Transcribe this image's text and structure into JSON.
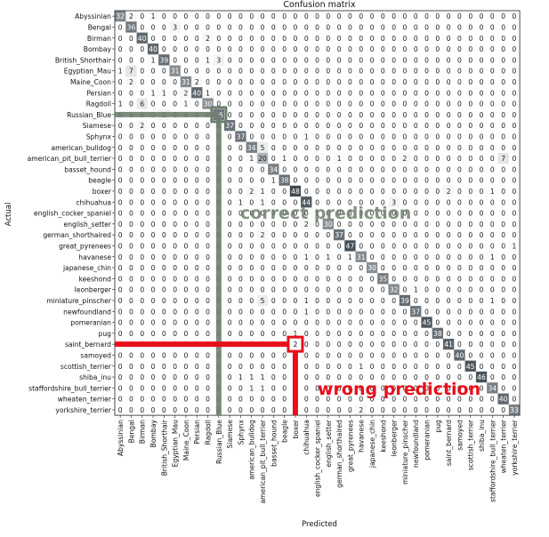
{
  "chart_data": {
    "type": "heatmap",
    "title": "Confusion matrix",
    "xlabel": "Predicted",
    "ylabel": "Actual",
    "labels": [
      "Abyssinian",
      "Bengal",
      "Birman",
      "Bombay",
      "British_Shorthair",
      "Egyptian_Mau",
      "Maine_Coon",
      "Persian",
      "Ragdoll",
      "Russian_Blue",
      "Siamese",
      "Sphynx",
      "american_bulldog",
      "american_pit_bull_terrier",
      "basset_hound",
      "beagle",
      "boxer",
      "chihuahua",
      "english_cocker_spaniel",
      "english_setter",
      "german_shorthaired",
      "great_pyrenees",
      "havanese",
      "japanese_chin",
      "keeshond",
      "leonberger",
      "miniature_pinscher",
      "newfoundland",
      "pomeranian",
      "pug",
      "saint_bernard",
      "samoyed",
      "scottish_terrier",
      "shiba_inu",
      "staffordshire_bull_terrier",
      "wheaten_terrier",
      "yorkshire_terrier"
    ],
    "matrix": [
      [
        32,
        2,
        0,
        1,
        0,
        0,
        0,
        0,
        0,
        0,
        0,
        0,
        0,
        0,
        0,
        0,
        0,
        0,
        0,
        0,
        0,
        0,
        0,
        0,
        0,
        0,
        0,
        0,
        0,
        0,
        0,
        0,
        0,
        0,
        0,
        0,
        0
      ],
      [
        0,
        36,
        0,
        0,
        0,
        3,
        0,
        0,
        0,
        0,
        0,
        0,
        0,
        0,
        0,
        0,
        0,
        0,
        0,
        0,
        0,
        0,
        0,
        0,
        0,
        0,
        0,
        0,
        0,
        0,
        0,
        0,
        0,
        0,
        0,
        0,
        0
      ],
      [
        0,
        0,
        40,
        0,
        0,
        0,
        0,
        0,
        2,
        0,
        0,
        0,
        0,
        0,
        0,
        0,
        0,
        0,
        0,
        0,
        0,
        0,
        0,
        0,
        0,
        0,
        0,
        0,
        0,
        0,
        0,
        0,
        0,
        0,
        0,
        0,
        0
      ],
      [
        0,
        0,
        0,
        40,
        0,
        0,
        0,
        0,
        0,
        0,
        0,
        0,
        0,
        0,
        0,
        0,
        0,
        0,
        0,
        0,
        0,
        0,
        0,
        0,
        0,
        0,
        0,
        0,
        0,
        0,
        0,
        0,
        0,
        0,
        0,
        0,
        0
      ],
      [
        0,
        0,
        0,
        1,
        39,
        0,
        0,
        0,
        1,
        3,
        0,
        0,
        0,
        0,
        0,
        0,
        0,
        0,
        0,
        0,
        0,
        0,
        0,
        0,
        0,
        0,
        0,
        0,
        0,
        0,
        0,
        0,
        0,
        0,
        0,
        0,
        0
      ],
      [
        1,
        7,
        0,
        0,
        0,
        31,
        0,
        0,
        0,
        0,
        0,
        0,
        0,
        0,
        0,
        0,
        0,
        0,
        0,
        0,
        0,
        0,
        0,
        0,
        0,
        0,
        0,
        0,
        0,
        0,
        0,
        0,
        0,
        0,
        0,
        0,
        0
      ],
      [
        0,
        2,
        0,
        0,
        0,
        0,
        31,
        2,
        0,
        0,
        0,
        0,
        0,
        0,
        0,
        0,
        0,
        0,
        0,
        0,
        0,
        0,
        0,
        0,
        0,
        0,
        0,
        0,
        0,
        0,
        0,
        0,
        0,
        0,
        0,
        0,
        0
      ],
      [
        0,
        0,
        0,
        1,
        1,
        0,
        2,
        40,
        1,
        0,
        0,
        0,
        0,
        0,
        0,
        0,
        0,
        0,
        0,
        0,
        0,
        0,
        0,
        0,
        0,
        0,
        0,
        0,
        0,
        0,
        0,
        0,
        0,
        0,
        0,
        0,
        0
      ],
      [
        1,
        0,
        6,
        0,
        0,
        0,
        1,
        0,
        30,
        0,
        0,
        0,
        0,
        0,
        0,
        0,
        0,
        0,
        0,
        0,
        0,
        0,
        0,
        0,
        0,
        0,
        0,
        0,
        0,
        0,
        0,
        0,
        0,
        0,
        0,
        0,
        0
      ],
      [
        0,
        0,
        0,
        0,
        3,
        0,
        0,
        0,
        0,
        36,
        0,
        0,
        0,
        0,
        0,
        0,
        0,
        0,
        0,
        0,
        0,
        0,
        0,
        0,
        0,
        0,
        0,
        0,
        0,
        0,
        0,
        0,
        0,
        0,
        0,
        0,
        0
      ],
      [
        0,
        0,
        2,
        0,
        0,
        0,
        0,
        0,
        0,
        0,
        37,
        0,
        0,
        0,
        0,
        0,
        0,
        0,
        0,
        0,
        0,
        0,
        0,
        0,
        0,
        0,
        0,
        0,
        0,
        0,
        0,
        0,
        0,
        0,
        0,
        0,
        0
      ],
      [
        0,
        0,
        0,
        0,
        0,
        0,
        0,
        0,
        0,
        0,
        0,
        37,
        0,
        0,
        0,
        0,
        0,
        1,
        0,
        0,
        0,
        0,
        0,
        0,
        0,
        0,
        0,
        0,
        0,
        0,
        0,
        0,
        0,
        0,
        0,
        0,
        0
      ],
      [
        0,
        0,
        0,
        0,
        0,
        0,
        0,
        0,
        0,
        0,
        0,
        0,
        34,
        5,
        0,
        0,
        0,
        0,
        0,
        0,
        0,
        0,
        0,
        0,
        0,
        0,
        0,
        0,
        0,
        0,
        0,
        0,
        0,
        0,
        0,
        0,
        0
      ],
      [
        0,
        0,
        0,
        0,
        0,
        0,
        0,
        0,
        0,
        0,
        0,
        0,
        1,
        20,
        0,
        1,
        0,
        0,
        0,
        0,
        1,
        0,
        0,
        0,
        0,
        0,
        2,
        0,
        0,
        0,
        0,
        0,
        0,
        0,
        0,
        7,
        0
      ],
      [
        0,
        0,
        0,
        0,
        0,
        0,
        0,
        0,
        0,
        0,
        0,
        0,
        0,
        0,
        34,
        0,
        0,
        0,
        0,
        0,
        0,
        0,
        0,
        0,
        0,
        0,
        0,
        0,
        0,
        0,
        0,
        0,
        0,
        0,
        0,
        0,
        0
      ],
      [
        0,
        0,
        0,
        0,
        0,
        0,
        0,
        0,
        0,
        0,
        0,
        0,
        0,
        0,
        1,
        38,
        0,
        0,
        0,
        0,
        0,
        0,
        0,
        0,
        0,
        0,
        0,
        0,
        0,
        0,
        0,
        0,
        0,
        0,
        0,
        0,
        0
      ],
      [
        0,
        0,
        0,
        0,
        0,
        0,
        0,
        0,
        0,
        0,
        0,
        0,
        2,
        1,
        0,
        0,
        48,
        0,
        0,
        0,
        0,
        0,
        0,
        0,
        0,
        0,
        0,
        0,
        0,
        0,
        2,
        0,
        0,
        0,
        1,
        0,
        0
      ],
      [
        0,
        0,
        0,
        0,
        0,
        0,
        0,
        0,
        0,
        0,
        0,
        1,
        0,
        1,
        0,
        0,
        0,
        44,
        0,
        0,
        0,
        0,
        0,
        0,
        0,
        3,
        0,
        0,
        0,
        0,
        0,
        0,
        0,
        0,
        0,
        0,
        0
      ],
      [
        0,
        0,
        0,
        0,
        0,
        0,
        0,
        0,
        0,
        0,
        0,
        0,
        0,
        0,
        0,
        0,
        0,
        0,
        1,
        0,
        0,
        0,
        0,
        0,
        0,
        0,
        0,
        0,
        0,
        0,
        0,
        0,
        0,
        0,
        0,
        0,
        0
      ],
      [
        0,
        0,
        0,
        0,
        0,
        0,
        0,
        0,
        0,
        0,
        0,
        0,
        0,
        0,
        0,
        0,
        0,
        2,
        0,
        30,
        0,
        0,
        0,
        0,
        0,
        0,
        0,
        0,
        0,
        0,
        0,
        0,
        0,
        0,
        0,
        0,
        0
      ],
      [
        0,
        0,
        0,
        0,
        0,
        0,
        0,
        0,
        0,
        0,
        0,
        0,
        0,
        2,
        0,
        0,
        0,
        0,
        0,
        0,
        37,
        0,
        0,
        0,
        0,
        0,
        0,
        0,
        0,
        0,
        0,
        0,
        0,
        0,
        0,
        0,
        0
      ],
      [
        0,
        0,
        0,
        0,
        0,
        0,
        0,
        0,
        0,
        0,
        0,
        0,
        0,
        0,
        0,
        0,
        0,
        0,
        0,
        0,
        0,
        47,
        0,
        0,
        0,
        0,
        0,
        0,
        0,
        0,
        0,
        0,
        0,
        0,
        0,
        0,
        1
      ],
      [
        0,
        0,
        0,
        0,
        0,
        0,
        0,
        0,
        0,
        0,
        0,
        0,
        0,
        0,
        0,
        0,
        0,
        1,
        0,
        1,
        0,
        1,
        31,
        0,
        0,
        0,
        0,
        0,
        0,
        0,
        0,
        0,
        0,
        0,
        1,
        0,
        0
      ],
      [
        0,
        0,
        0,
        0,
        0,
        0,
        0,
        0,
        0,
        0,
        0,
        0,
        0,
        0,
        0,
        0,
        0,
        0,
        0,
        0,
        0,
        0,
        0,
        30,
        0,
        0,
        0,
        0,
        0,
        0,
        0,
        0,
        0,
        0,
        0,
        0,
        0
      ],
      [
        0,
        0,
        0,
        0,
        0,
        0,
        0,
        0,
        0,
        0,
        0,
        0,
        0,
        0,
        0,
        0,
        0,
        0,
        0,
        0,
        0,
        0,
        0,
        0,
        35,
        0,
        0,
        0,
        0,
        0,
        0,
        0,
        0,
        0,
        0,
        0,
        0
      ],
      [
        0,
        0,
        0,
        0,
        0,
        0,
        0,
        0,
        0,
        0,
        0,
        0,
        0,
        0,
        0,
        0,
        0,
        0,
        0,
        0,
        0,
        0,
        0,
        0,
        0,
        32,
        0,
        1,
        0,
        0,
        0,
        0,
        0,
        0,
        0,
        0,
        0
      ],
      [
        0,
        0,
        0,
        0,
        0,
        0,
        0,
        0,
        0,
        0,
        0,
        0,
        0,
        5,
        0,
        0,
        0,
        1,
        0,
        0,
        0,
        0,
        0,
        0,
        0,
        0,
        39,
        0,
        0,
        0,
        0,
        0,
        0,
        0,
        1,
        0,
        0
      ],
      [
        0,
        0,
        0,
        0,
        0,
        0,
        0,
        0,
        0,
        0,
        0,
        0,
        0,
        0,
        0,
        0,
        0,
        1,
        0,
        0,
        0,
        0,
        0,
        0,
        0,
        0,
        0,
        37,
        0,
        0,
        0,
        0,
        0,
        0,
        0,
        0,
        0
      ],
      [
        0,
        0,
        0,
        0,
        0,
        0,
        0,
        0,
        0,
        0,
        0,
        0,
        0,
        0,
        0,
        0,
        0,
        0,
        0,
        0,
        0,
        0,
        0,
        0,
        0,
        0,
        0,
        0,
        45,
        0,
        0,
        0,
        0,
        0,
        0,
        0,
        0
      ],
      [
        0,
        0,
        0,
        0,
        0,
        0,
        0,
        0,
        0,
        0,
        0,
        0,
        0,
        0,
        0,
        0,
        1,
        0,
        0,
        0,
        0,
        0,
        0,
        0,
        0,
        0,
        0,
        0,
        0,
        38,
        0,
        0,
        0,
        0,
        0,
        0,
        0
      ],
      [
        0,
        0,
        0,
        0,
        0,
        0,
        0,
        0,
        0,
        0,
        0,
        0,
        0,
        0,
        0,
        0,
        2,
        0,
        0,
        0,
        0,
        0,
        0,
        0,
        0,
        0,
        0,
        0,
        0,
        0,
        41,
        0,
        0,
        0,
        0,
        0,
        0
      ],
      [
        0,
        0,
        0,
        0,
        0,
        0,
        0,
        0,
        0,
        0,
        0,
        0,
        0,
        0,
        0,
        0,
        0,
        0,
        0,
        0,
        0,
        0,
        0,
        0,
        0,
        0,
        0,
        0,
        0,
        0,
        0,
        40,
        0,
        0,
        0,
        0,
        0
      ],
      [
        0,
        0,
        0,
        0,
        0,
        0,
        0,
        0,
        0,
        0,
        0,
        0,
        0,
        0,
        0,
        0,
        0,
        0,
        0,
        0,
        0,
        0,
        1,
        0,
        0,
        0,
        0,
        0,
        0,
        0,
        0,
        0,
        45,
        0,
        0,
        0,
        0
      ],
      [
        0,
        0,
        0,
        0,
        0,
        0,
        0,
        0,
        0,
        0,
        0,
        1,
        1,
        1,
        0,
        0,
        0,
        0,
        0,
        0,
        0,
        0,
        0,
        0,
        0,
        0,
        0,
        0,
        0,
        0,
        0,
        0,
        0,
        46,
        0,
        0,
        0
      ],
      [
        0,
        0,
        0,
        0,
        0,
        0,
        0,
        0,
        0,
        0,
        0,
        0,
        1,
        1,
        0,
        0,
        0,
        0,
        0,
        0,
        0,
        0,
        0,
        0,
        0,
        0,
        0,
        0,
        0,
        0,
        0,
        0,
        0,
        0,
        34,
        0,
        0
      ],
      [
        0,
        0,
        0,
        0,
        0,
        0,
        0,
        0,
        0,
        0,
        0,
        0,
        0,
        0,
        0,
        0,
        0,
        0,
        0,
        0,
        0,
        0,
        0,
        0,
        0,
        0,
        0,
        0,
        0,
        0,
        0,
        0,
        0,
        0,
        0,
        40,
        0
      ],
      [
        0,
        0,
        0,
        0,
        0,
        0,
        0,
        0,
        0,
        0,
        0,
        0,
        0,
        0,
        0,
        0,
        0,
        0,
        0,
        0,
        0,
        0,
        2,
        0,
        0,
        0,
        0,
        0,
        0,
        0,
        0,
        0,
        0,
        0,
        0,
        0,
        33
      ]
    ],
    "grid": false,
    "colormap": "grays"
  },
  "annotations": {
    "correct": {
      "text": "correct prediction",
      "color": "#6f7f6d",
      "row": 9,
      "col": 9
    },
    "wrong": {
      "text": "wrong prediction",
      "color": "#e8101a",
      "row": 30,
      "col": 16
    }
  },
  "colors": {
    "low": "#ffffff",
    "high": "#3f4a52",
    "text_dark": "#1a1a1a",
    "text_light": "#ffffff"
  }
}
